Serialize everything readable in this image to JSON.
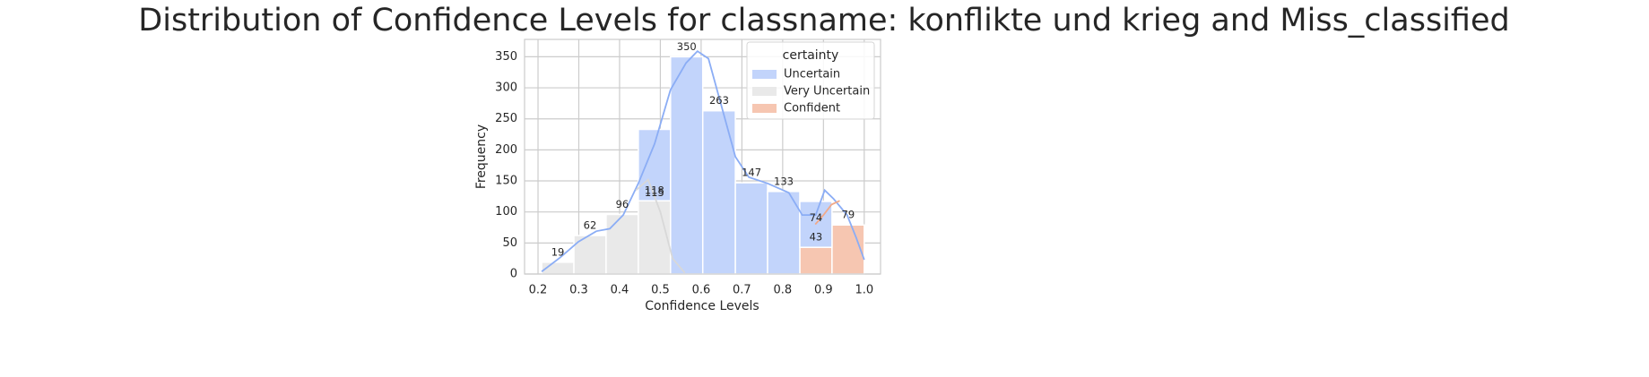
{
  "chart_data": {
    "type": "histogram",
    "title": "Distribution of Confidence Levels for classname: konflikte und krieg and Miss_classified",
    "x_label": "Confidence Levels",
    "y_label": "Frequency",
    "bins": [
      0.209,
      0.288,
      0.367,
      0.446,
      0.525,
      0.604,
      0.684,
      0.763,
      0.842,
      0.921,
      1.0
    ],
    "stacked": true,
    "grid": true,
    "legend_title": "certainty",
    "legend_position": "upper right",
    "series": [
      {
        "name": "Uncertain",
        "color": "#c2d4fb",
        "line_color": "#8badf5",
        "values": [
          0,
          0,
          0,
          115,
          350,
          263,
          147,
          133,
          74,
          0
        ],
        "kde": {
          "x": [
            0.209,
            0.255,
            0.299,
            0.343,
            0.376,
            0.409,
            0.446,
            0.486,
            0.525,
            0.563,
            0.591,
            0.618,
            0.651,
            0.684,
            0.717,
            0.763,
            0.815,
            0.848,
            0.881,
            0.903,
            0.925,
            0.958,
            0.98,
            1.0
          ],
          "y": [
            4,
            27,
            52,
            69,
            73,
            95,
            146,
            210,
            297,
            340,
            359,
            347,
            268,
            189,
            156,
            146,
            131,
            95,
            95,
            135,
            121,
            95,
            59,
            23
          ]
        }
      },
      {
        "name": "Very Uncertain",
        "color": "#e9e9e9",
        "line_color": "#d8d8d8",
        "values": [
          19,
          62,
          96,
          118,
          0,
          0,
          0,
          0,
          0,
          0
        ],
        "kde": {
          "x": [
            0.44,
            0.47,
            0.5,
            0.53,
            0.56
          ],
          "y": [
            135,
            152,
            100,
            25,
            2
          ]
        }
      },
      {
        "name": "Confident",
        "color": "#f6c6b1",
        "line_color": "#f0a98a",
        "values": [
          0,
          0,
          0,
          0,
          0,
          0,
          0,
          0,
          43,
          79
        ],
        "kde": {
          "x": [
            0.88,
            0.9,
            0.92,
            0.94
          ],
          "y": [
            80,
            95,
            112,
            118
          ]
        }
      }
    ],
    "xlim": [
      0.167,
      1.04
    ],
    "xticks": [
      0.2,
      0.3,
      0.4,
      0.5,
      0.6,
      0.7,
      0.8,
      0.9,
      {
        "value": 1,
        "label": "1.0"
      }
    ],
    "ylim": [
      0,
      378
    ],
    "yticks": [
      0,
      50,
      100,
      150,
      200,
      250,
      300,
      350
    ]
  }
}
